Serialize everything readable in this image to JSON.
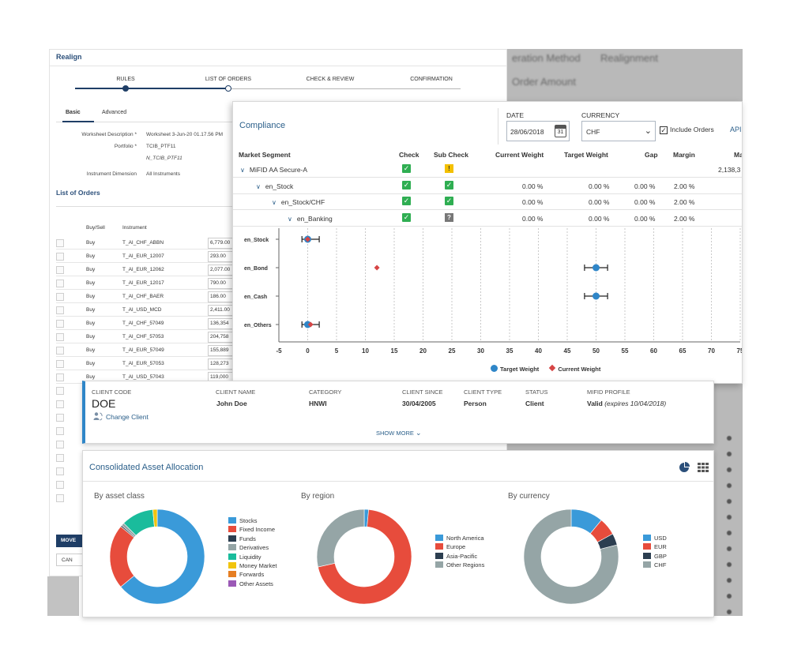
{
  "background": {
    "labels": [
      "eration Method",
      "Realignment",
      "Order Amount"
    ]
  },
  "realign": {
    "title": "Realign",
    "steps": [
      "RULES",
      "LIST OF ORDERS",
      "CHECK & REVIEW",
      "CONFIRMATION"
    ],
    "tabs": [
      "Basic",
      "Advanced"
    ],
    "fields": {
      "worksheet_label": "Worksheet Description *",
      "worksheet_value": "Worksheet 3-Jun-20 01.17.56 PM",
      "portfolio_label": "Portfolio *",
      "portfolio_value_1": "TCIB_PTF11",
      "portfolio_value_2": "N_TCIB_PTF11",
      "dimension_label": "Instrument Dimension",
      "dimension_value": "All Instruments"
    },
    "list_title": "List of Orders",
    "columns": [
      "Buy/Sell",
      "Instrument"
    ],
    "orders": [
      {
        "side": "Buy",
        "instrument": "T_AI_CHF_ABBN",
        "amount": "6,779.00"
      },
      {
        "side": "Buy",
        "instrument": "T_AI_EUR_12007",
        "amount": "293.00"
      },
      {
        "side": "Buy",
        "instrument": "T_AI_EUR_12062",
        "amount": "2,077.00"
      },
      {
        "side": "Buy",
        "instrument": "T_AI_EUR_12017",
        "amount": "790.00"
      },
      {
        "side": "Buy",
        "instrument": "T_AI_CHF_BAER",
        "amount": "186.00"
      },
      {
        "side": "Buy",
        "instrument": "T_AI_USD_MCD",
        "amount": "2,411.00"
      },
      {
        "side": "Buy",
        "instrument": "T_AI_CHF_57049",
        "amount": "136,354"
      },
      {
        "side": "Buy",
        "instrument": "T_AI_CHF_57053",
        "amount": "204,758"
      },
      {
        "side": "Buy",
        "instrument": "T_AI_EUR_57049",
        "amount": "155,889"
      },
      {
        "side": "Buy",
        "instrument": "T_AI_EUR_57053",
        "amount": "128,273"
      },
      {
        "side": "Buy",
        "instrument": "T_AI_USD_57043",
        "amount": "119,000"
      }
    ],
    "move_label": "MOVE",
    "cancel_label": "CAN"
  },
  "compliance": {
    "title": "Compliance",
    "date_label": "DATE",
    "date_value": "28/06/2018",
    "calendar_day": "31",
    "currency_label": "CURRENCY",
    "currency_value": "CHF",
    "include_orders_label": "Include Orders",
    "api_label": "API",
    "columns": [
      "Market Segment",
      "Check",
      "Sub Check",
      "Current Weight",
      "Target Weight",
      "Gap",
      "Margin",
      "Ma"
    ],
    "rows": [
      {
        "name": "MiFID AA Secure-A",
        "level": 0,
        "check": "ok",
        "sub": "warn",
        "current": "",
        "target": "",
        "gap": "",
        "margin": "",
        "ma": "2,138,3"
      },
      {
        "name": "en_Stock",
        "level": 1,
        "check": "ok",
        "sub": "ok",
        "current": "0.00  %",
        "target": "0.00  %",
        "gap": "0.00  %",
        "margin": "2.00  %",
        "ma": ""
      },
      {
        "name": "en_Stock/CHF",
        "level": 2,
        "check": "ok",
        "sub": "ok",
        "current": "0.00  %",
        "target": "0.00  %",
        "gap": "0.00  %",
        "margin": "2.00  %",
        "ma": ""
      },
      {
        "name": "en_Banking",
        "level": 3,
        "check": "ok",
        "sub": "unknown",
        "current": "0.00  %",
        "target": "0.00  %",
        "gap": "0.00  %",
        "margin": "2.00  %",
        "ma": ""
      }
    ],
    "icons": {
      "ok": "check-icon",
      "warn": "warning-icon",
      "unknown": "question-icon"
    },
    "chart_data": {
      "type": "scatter",
      "categories": [
        "en_Stock",
        "en_Bond",
        "en_Cash",
        "en_Others"
      ],
      "xlim": [
        -5,
        75
      ],
      "xticks": [
        -5,
        0,
        5,
        10,
        15,
        20,
        25,
        30,
        35,
        40,
        45,
        50,
        55,
        60,
        65,
        70,
        75
      ],
      "series": [
        {
          "name": "Target Weight",
          "color": "#2f86c8",
          "values": [
            0,
            50,
            50,
            0
          ],
          "range_low": [
            -1,
            48,
            48,
            -1
          ],
          "range_high": [
            2,
            52,
            52,
            2
          ]
        },
        {
          "name": "Current Weight",
          "color": "#d64545",
          "values": [
            0,
            12,
            null,
            0.5
          ]
        }
      ],
      "legend": "bottom-center",
      "grid": "vertical-dotted"
    }
  },
  "client": {
    "code_label": "CLIENT CODE",
    "code_value": "DOE",
    "change_client_label": "Change Client",
    "name_label": "CLIENT NAME",
    "name_value": "John Doe",
    "category_label": "CATEGORY",
    "category_value": "HNWI",
    "since_label": "CLIENT SINCE",
    "since_value": "30/04/2005",
    "type_label": "CLIENT TYPE",
    "type_value": "Person",
    "status_label": "STATUS",
    "status_value": "Client",
    "mifid_label": "MIFID PROFILE",
    "mifid_value": "Valid",
    "mifid_expiry": "(expires 10/04/2018)",
    "show_more_label": "SHOW MORE"
  },
  "allocation": {
    "title": "Consolidated Asset Allocation",
    "chart_data": [
      {
        "type": "pie",
        "title": "By asset class",
        "labels": [
          "Stocks",
          "Fixed Income",
          "Funds",
          "Derivatives",
          "Liquidity",
          "Money Market",
          "Forwards",
          "Other Assets"
        ],
        "values": [
          64,
          22,
          0.5,
          1,
          11,
          1.5,
          0,
          0
        ],
        "colors": [
          "#3a9ad9",
          "#e74c3c",
          "#2c3e50",
          "#95a5a6",
          "#1abc9c",
          "#f1c40f",
          "#e67e22",
          "#9b59b6"
        ],
        "legend": "right"
      },
      {
        "type": "pie",
        "title": "By region",
        "labels": [
          "North America",
          "Europe",
          "Asia-Pacific",
          "Other Regions"
        ],
        "values": [
          1.5,
          70,
          0,
          28.5
        ],
        "colors": [
          "#3a9ad9",
          "#e74c3c",
          "#2c3e50",
          "#95a5a6"
        ],
        "legend": "right"
      },
      {
        "type": "pie",
        "title": "By currency",
        "labels": [
          "USD",
          "EUR",
          "GBP",
          "CHF"
        ],
        "values": [
          11,
          6,
          4,
          79
        ],
        "colors": [
          "#3a9ad9",
          "#e74c3c",
          "#2c3e50",
          "#95a5a6"
        ],
        "legend": "right"
      }
    ]
  }
}
